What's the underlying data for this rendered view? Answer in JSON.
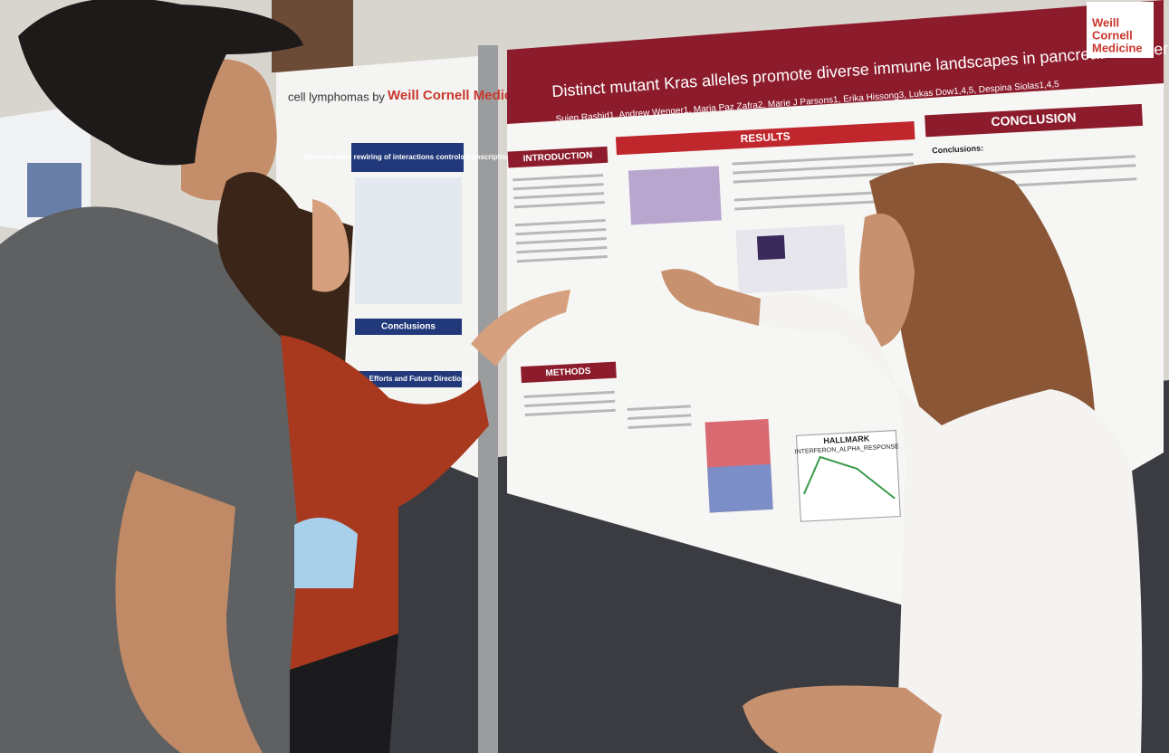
{
  "main_poster": {
    "title": "Distinct mutant Kras alleles promote diverse immune landscapes in pancreatic cancer",
    "authors": "Sujen Rashid1, Andrew Wenger1, Maria Paz Zafra2, Marie J Parsons1, Erika Hissong3, Lukas Dow1,4,5, Despina Siolas1,4,5",
    "logo": [
      "Weill",
      "Cornell",
      "Medicine"
    ],
    "sections": [
      "INTRODUCTION",
      "RESULTS",
      "CONCLUSION",
      "METHODS"
    ],
    "conclusions_label": "Conclusions:",
    "figure_title": [
      "HALLMARK",
      "INTERFERON_ALPHA_RESPONSE"
    ]
  },
  "left_poster": {
    "title": "cell lymphomas by",
    "logo": "Weill Cornell Medicine",
    "sections": [
      "Genome-wide rewiring of interactions controls transcription",
      "Conclusions",
      "going Efforts and Future Directions"
    ]
  }
}
